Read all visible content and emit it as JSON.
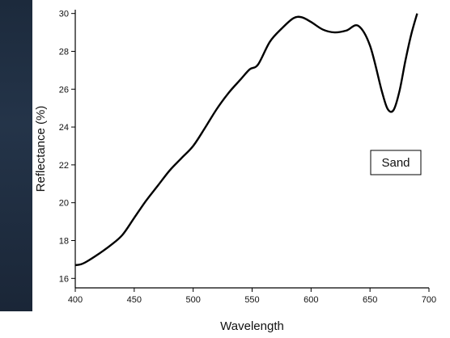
{
  "chart_data": {
    "type": "line",
    "xlabel": "Wavelength",
    "ylabel": "Reflectance (%)",
    "xlim": [
      400,
      700
    ],
    "ylim": [
      15.5,
      30.2
    ],
    "xticks": [
      400,
      450,
      500,
      550,
      600,
      650,
      700
    ],
    "yticks": [
      16,
      18,
      20,
      22,
      24,
      26,
      28,
      30
    ],
    "grid": false,
    "legend_placement": "right",
    "series": [
      {
        "name": "Sand",
        "color": "#000000",
        "x": [
          400,
          405,
          410,
          420,
          430,
          440,
          450,
          460,
          470,
          480,
          490,
          500,
          510,
          520,
          530,
          540,
          548,
          555,
          565,
          575,
          585,
          592,
          600,
          610,
          620,
          630,
          640,
          650,
          660,
          665,
          670,
          675,
          680,
          685,
          690
        ],
        "y": [
          16.7,
          16.75,
          16.9,
          17.3,
          17.75,
          18.3,
          19.2,
          20.1,
          20.9,
          21.7,
          22.35,
          23.0,
          23.95,
          24.95,
          25.8,
          26.5,
          27.05,
          27.3,
          28.5,
          29.2,
          29.75,
          29.8,
          29.55,
          29.15,
          29.0,
          29.1,
          29.35,
          28.3,
          25.9,
          24.95,
          24.9,
          25.9,
          27.5,
          28.9,
          30.0
        ]
      }
    ]
  }
}
